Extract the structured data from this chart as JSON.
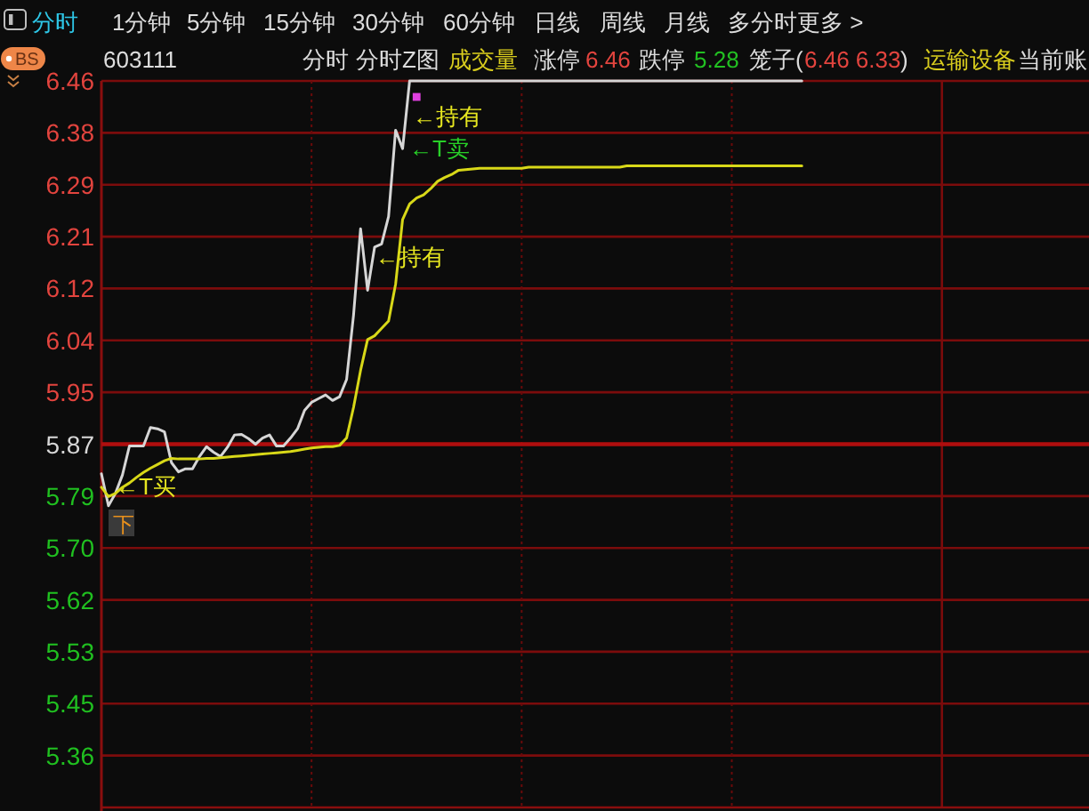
{
  "chart_data": {
    "type": "line",
    "categories": [
      null,
      null,
      null,
      null,
      null,
      null,
      null,
      null,
      null,
      null,
      null,
      null,
      null,
      null,
      null,
      null,
      null,
      null,
      null,
      null,
      null,
      null,
      null,
      null,
      null,
      null,
      null,
      null,
      null,
      null,
      null,
      null,
      null,
      null,
      null,
      null,
      null,
      null,
      null,
      null,
      null,
      null,
      null,
      null,
      null,
      null,
      null,
      null,
      null,
      null,
      null,
      null,
      null,
      null,
      null,
      null,
      null,
      null,
      null,
      null,
      null,
      null,
      null,
      null,
      null,
      null,
      null,
      null,
      null,
      null,
      null,
      null,
      null,
      null,
      null,
      null,
      null,
      null,
      null,
      null,
      null,
      null,
      null,
      null,
      null,
      null,
      null,
      null,
      null,
      null,
      null,
      null,
      null,
      null,
      null,
      null,
      null,
      null,
      null,
      null,
      null,
      null,
      null,
      null,
      null,
      null,
      null,
      null,
      null,
      null,
      null,
      null,
      null,
      null,
      null,
      null,
      null,
      null,
      null,
      null,
      null,
      null,
      null,
      null,
      null,
      null,
      null,
      null,
      null,
      null,
      null,
      null,
      null,
      null,
      null,
      null,
      null,
      null,
      null,
      null,
      null
    ],
    "series": [
      {
        "color": "#d6d6d6",
        "values": [
          5.822,
          5.77,
          5.79,
          5.82,
          5.867,
          5.867,
          5.867,
          5.897,
          5.895,
          5.89,
          5.84,
          5.825,
          5.83,
          5.83,
          5.85,
          5.866,
          5.857,
          5.85,
          5.865,
          5.885,
          5.886,
          5.879,
          5.87,
          5.88,
          5.885,
          5.867,
          5.867,
          5.88,
          5.895,
          5.925,
          5.938,
          5.944,
          5.95,
          5.941,
          5.947,
          5.975,
          6.08,
          6.22,
          6.12,
          6.19,
          6.195,
          6.24,
          6.38,
          6.35,
          6.46,
          6.46,
          6.46,
          6.46,
          6.46,
          6.46,
          6.46,
          6.46,
          6.46,
          6.46,
          6.46,
          6.46,
          6.46,
          6.46,
          6.46,
          6.46,
          6.46,
          6.46,
          6.46,
          6.46,
          6.46,
          6.46,
          6.46,
          6.46,
          6.46,
          6.46,
          6.46,
          6.46,
          6.46,
          6.46,
          6.46,
          6.46,
          6.46,
          6.46,
          6.46,
          6.46,
          6.46,
          6.46,
          6.46,
          6.46,
          6.46,
          6.46,
          6.46,
          6.46,
          6.46,
          6.46,
          6.46,
          6.46,
          6.46,
          6.46,
          6.46,
          6.46,
          6.46,
          6.46,
          6.46,
          6.46,
          6.46,
          null,
          null,
          null,
          null,
          null,
          null,
          null,
          null,
          null,
          null,
          null,
          null,
          null,
          null,
          null,
          null,
          null,
          null,
          null,
          null,
          null,
          null,
          null,
          null,
          null,
          null,
          null,
          null,
          null,
          null,
          null,
          null,
          null,
          null,
          null,
          null,
          null,
          null,
          null,
          null
        ]
      },
      {
        "color": "#d8d818",
        "values": [
          5.8,
          5.785,
          5.79,
          5.8,
          5.807,
          5.816,
          5.824,
          5.831,
          5.837,
          5.843,
          5.847,
          5.846,
          5.846,
          5.846,
          5.846,
          5.847,
          5.847,
          5.848,
          5.849,
          5.85,
          5.851,
          5.852,
          5.853,
          5.854,
          5.855,
          5.856,
          5.857,
          5.858,
          5.86,
          5.862,
          5.864,
          5.865,
          5.866,
          5.866,
          5.868,
          5.88,
          5.93,
          5.99,
          6.04,
          6.046,
          6.058,
          6.07,
          6.13,
          6.235,
          6.26,
          6.27,
          6.275,
          6.285,
          6.297,
          6.303,
          6.308,
          6.315,
          6.316,
          6.317,
          6.318,
          6.318,
          6.318,
          6.318,
          6.318,
          6.318,
          6.318,
          6.32,
          6.32,
          6.32,
          6.32,
          6.32,
          6.32,
          6.32,
          6.32,
          6.32,
          6.32,
          6.32,
          6.32,
          6.32,
          6.32,
          6.322,
          6.322,
          6.322,
          6.322,
          6.322,
          6.322,
          6.322,
          6.322,
          6.322,
          6.322,
          6.322,
          6.322,
          6.322,
          6.322,
          6.322,
          6.322,
          6.322,
          6.322,
          6.322,
          6.322,
          6.322,
          6.322,
          6.322,
          6.322,
          6.322,
          6.322,
          null,
          null,
          null,
          null,
          null,
          null,
          null,
          null,
          null,
          null,
          null,
          null,
          null,
          null,
          null,
          null,
          null,
          null,
          null,
          null,
          null,
          null,
          null,
          null,
          null,
          null,
          null,
          null,
          null,
          null,
          null,
          null,
          null,
          null,
          null,
          null,
          null,
          null,
          null,
          null
        ]
      },
      {
        "type": "scatter",
        "marker": "square",
        "color": "#e040e0",
        "values": [
          null,
          null,
          null,
          null,
          null,
          null,
          null,
          null,
          null,
          null,
          null,
          null,
          null,
          null,
          null,
          null,
          null,
          null,
          null,
          null,
          null,
          null,
          null,
          null,
          null,
          null,
          null,
          null,
          null,
          null,
          null,
          null,
          null,
          null,
          null,
          null,
          null,
          null,
          null,
          null,
          null,
          null,
          null,
          null,
          null,
          6.434,
          null,
          null,
          null,
          null,
          null,
          null,
          null,
          null,
          null,
          null,
          null,
          null,
          null,
          null,
          null,
          null,
          null,
          null,
          null,
          null,
          null,
          null,
          null,
          null,
          null,
          null,
          null,
          null,
          null,
          null,
          null,
          null,
          null,
          null,
          null,
          null,
          null,
          null,
          null,
          null,
          null,
          null,
          null,
          null,
          null,
          null,
          null,
          null,
          null,
          null,
          null,
          null,
          null,
          null,
          null,
          null,
          null,
          null,
          null,
          null,
          null,
          null,
          null,
          null,
          null,
          null,
          null,
          null,
          null,
          null,
          null,
          null,
          null,
          null,
          null,
          null,
          null,
          null,
          null,
          null,
          null,
          null,
          null,
          null,
          null,
          null,
          null,
          null,
          null,
          null,
          null,
          null,
          null,
          null,
          null
        ]
      }
    ],
    "ylim": [
      5.28,
      6.46
    ],
    "yticks": [
      {
        "value": 5.3643,
        "label": "5.36"
      },
      {
        "value": 5.4486,
        "label": "5.45"
      },
      {
        "value": 5.5329,
        "label": "5.53"
      },
      {
        "value": 5.6171,
        "label": "5.62"
      },
      {
        "value": 5.7014,
        "label": "5.70"
      },
      {
        "value": 5.7857,
        "label": "5.79"
      },
      5.87,
      {
        "value": 5.9543,
        "label": "5.95"
      },
      {
        "value": 6.0386,
        "label": "6.04"
      },
      {
        "value": 6.1229,
        "label": "6.12"
      },
      {
        "value": 6.2071,
        "label": "6.21"
      },
      {
        "value": 6.2914,
        "label": "6.29"
      },
      {
        "value": 6.3757,
        "label": "6.38"
      },
      6.46
    ],
    "grid": true,
    "ref_lines": [
      {
        "axis": "y",
        "value": 5.87,
        "color": "#b00e0e"
      }
    ],
    "tick_labels": "y",
    "annotations": [
      "分时",
      "1分钟",
      "5分钟",
      "15分钟",
      "30分钟",
      "60分钟",
      "日线",
      "周线",
      "月线",
      "多分时",
      "更多 >",
      "BS",
      "603111",
      "分时",
      "分时Z图",
      "成交量",
      "涨停",
      "6.46",
      "跌停",
      "5.28",
      "笼子(",
      "6.46 6.33",
      ")",
      "运输设备",
      "当前账",
      "←持有",
      "←T卖",
      "←持有",
      "←T买",
      "下"
    ]
  }
}
